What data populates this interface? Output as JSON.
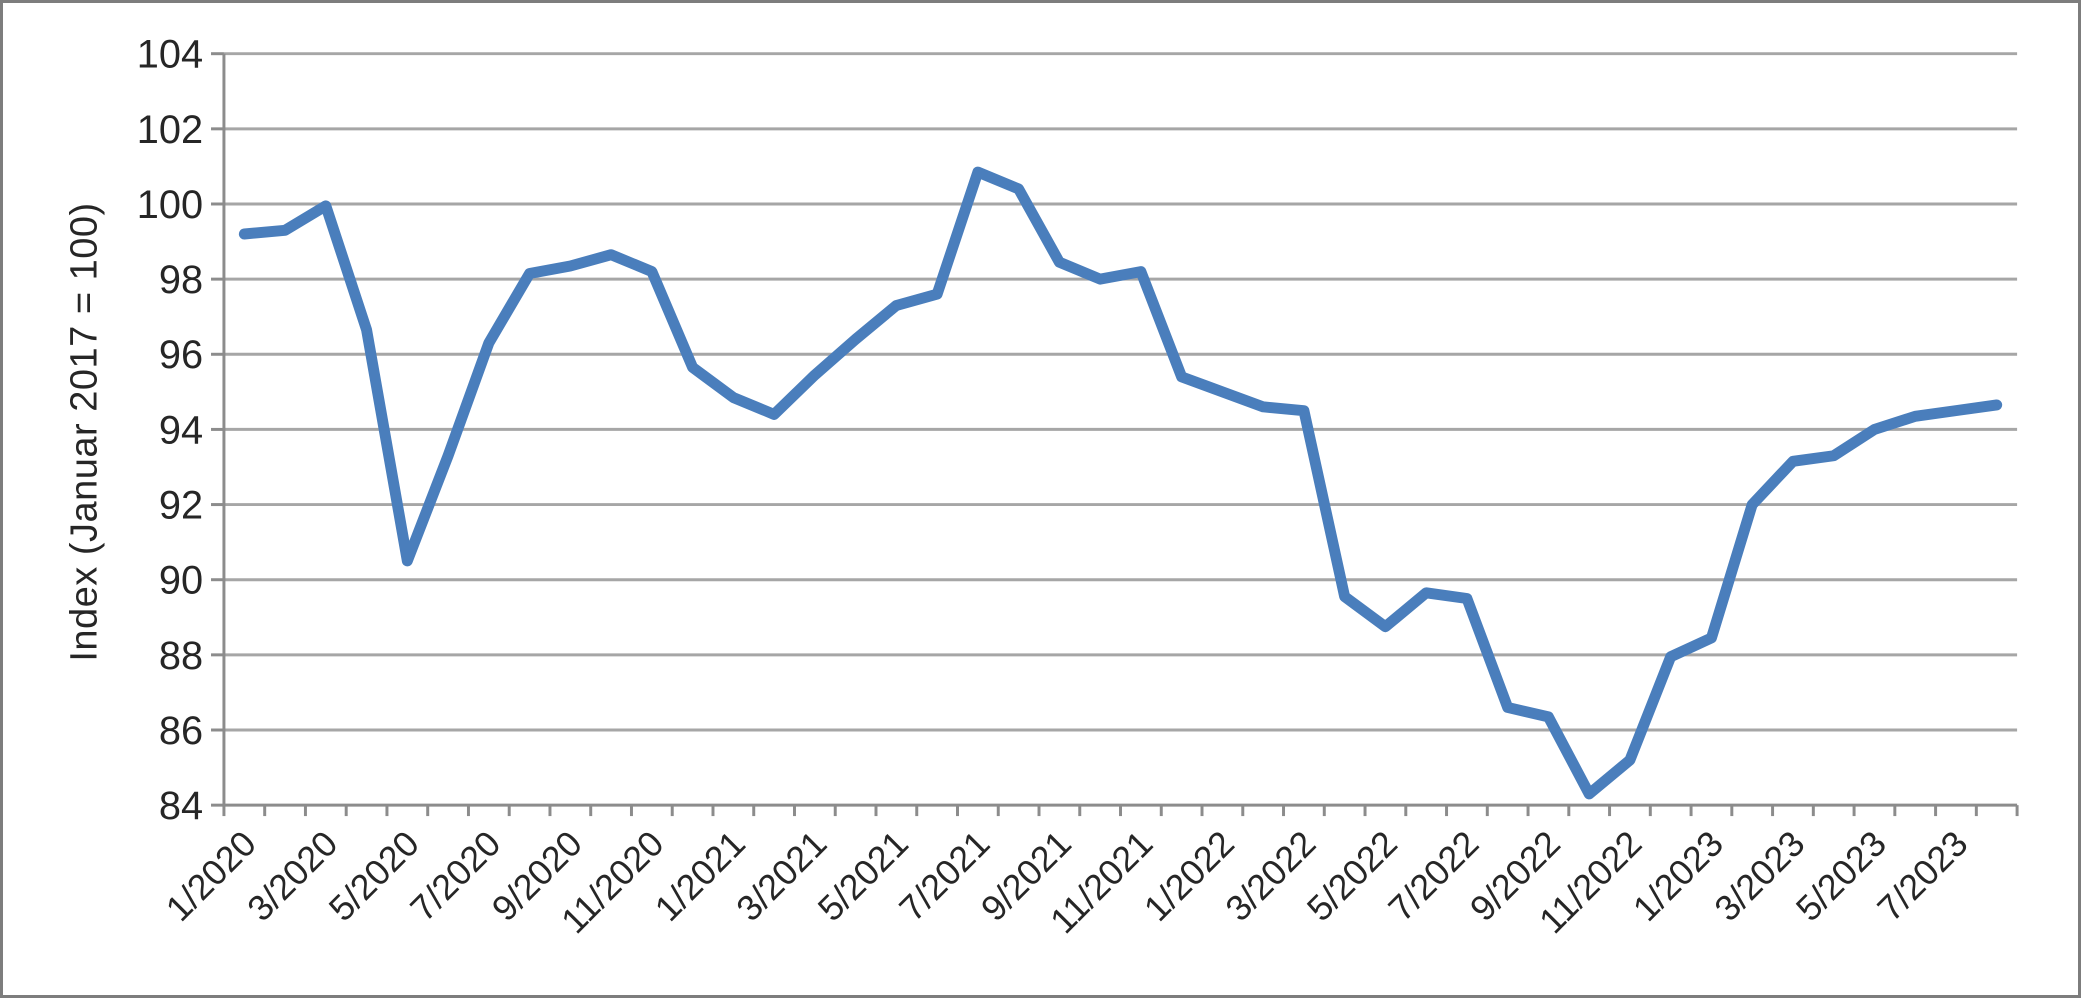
{
  "chart_data": {
    "type": "line",
    "title": "",
    "xlabel": "",
    "ylabel": "Index (Januar 2017 = 100)",
    "ylim": [
      84,
      104
    ],
    "y_ticks": [
      84,
      86,
      88,
      90,
      92,
      94,
      96,
      98,
      100,
      102,
      104
    ],
    "grid": "horizontal",
    "legend": "none",
    "x_label_every": 2,
    "x": [
      "1/2020",
      "2/2020",
      "3/2020",
      "4/2020",
      "5/2020",
      "6/2020",
      "7/2020",
      "8/2020",
      "9/2020",
      "10/2020",
      "11/2020",
      "12/2020",
      "1/2021",
      "2/2021",
      "3/2021",
      "4/2021",
      "5/2021",
      "6/2021",
      "7/2021",
      "8/2021",
      "9/2021",
      "10/2021",
      "11/2021",
      "12/2021",
      "1/2022",
      "2/2022",
      "3/2022",
      "4/2022",
      "5/2022",
      "6/2022",
      "7/2022",
      "8/2022",
      "9/2022",
      "10/2022",
      "11/2022",
      "12/2022",
      "1/2023",
      "2/2023",
      "3/2023",
      "4/2023",
      "5/2023",
      "6/2023",
      "7/2023",
      "8/2023"
    ],
    "series": [
      {
        "name": "Index",
        "values": [
          99.2,
          99.3,
          99.95,
          96.65,
          90.5,
          93.3,
          96.3,
          98.15,
          98.35,
          98.65,
          98.2,
          95.65,
          94.85,
          94.4,
          95.45,
          96.4,
          97.3,
          97.6,
          100.85,
          100.4,
          98.45,
          98.0,
          98.2,
          95.4,
          95.0,
          94.6,
          94.5,
          89.55,
          88.75,
          89.65,
          89.5,
          86.6,
          86.35,
          84.3,
          85.2,
          87.95,
          88.45,
          92.0,
          93.15,
          93.3,
          94.0,
          94.35,
          94.5,
          94.65
        ]
      }
    ],
    "line_color": "#4a7ebc"
  },
  "colors": {
    "background": "#ffffff",
    "border": "#7d7d7d",
    "grid": "#a6a6a6",
    "axis": "#8c8c8c",
    "text": "#262626"
  }
}
